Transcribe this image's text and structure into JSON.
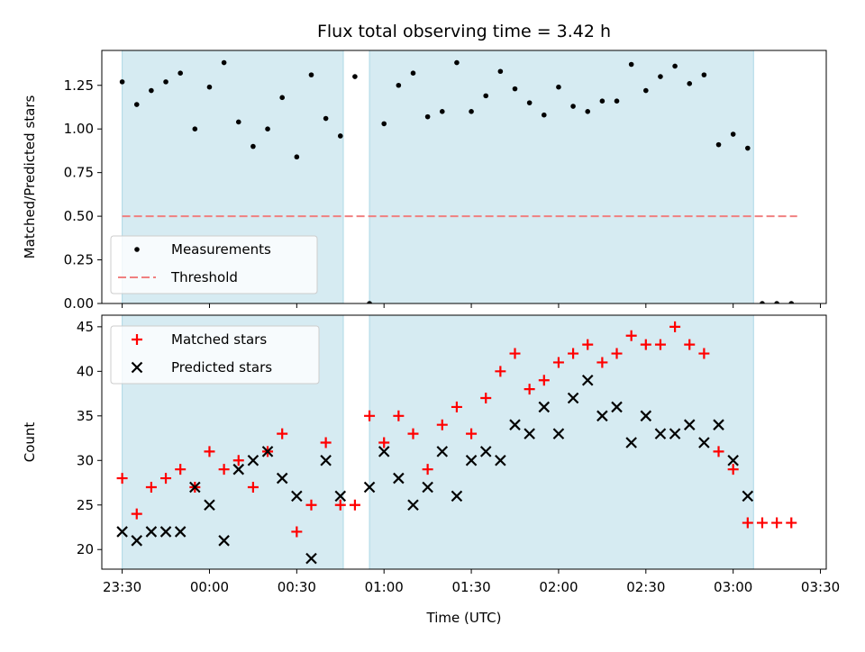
{
  "chart_data": [
    {
      "type": "scatter",
      "title": "Flux total observing time = 3.42 h",
      "xlabel": "",
      "ylabel": "Matched/Predicted stars",
      "xlim": [
        "23:23",
        "03:32"
      ],
      "ylim": [
        0,
        1.45
      ],
      "yticks": [
        "0.00",
        "0.25",
        "0.50",
        "0.75",
        "1.00",
        "1.25"
      ],
      "legend_position": "lower-left",
      "shaded_intervals": [
        [
          "23:30",
          "00:46"
        ],
        [
          "00:55",
          "03:07"
        ]
      ],
      "threshold": {
        "name": "Threshold",
        "y": 0.5,
        "x_start": "23:30",
        "x_end": "03:22",
        "color": "#f08080"
      },
      "series": [
        {
          "name": "Measurements",
          "marker": "dot",
          "color": "#000000",
          "points": [
            [
              "23:30",
              1.27
            ],
            [
              "23:35",
              1.14
            ],
            [
              "23:40",
              1.22
            ],
            [
              "23:45",
              1.27
            ],
            [
              "23:50",
              1.32
            ],
            [
              "23:55",
              1.0
            ],
            [
              "00:00",
              1.24
            ],
            [
              "00:05",
              1.38
            ],
            [
              "00:10",
              1.04
            ],
            [
              "00:15",
              0.9
            ],
            [
              "00:20",
              1.0
            ],
            [
              "00:25",
              1.18
            ],
            [
              "00:30",
              0.84
            ],
            [
              "00:35",
              1.31
            ],
            [
              "00:40",
              1.06
            ],
            [
              "00:45",
              0.96
            ],
            [
              "00:50",
              1.3
            ],
            [
              "00:55",
              0.0
            ],
            [
              "01:00",
              1.03
            ],
            [
              "01:05",
              1.25
            ],
            [
              "01:10",
              1.32
            ],
            [
              "01:15",
              1.07
            ],
            [
              "01:20",
              1.1
            ],
            [
              "01:25",
              1.38
            ],
            [
              "01:30",
              1.1
            ],
            [
              "01:35",
              1.19
            ],
            [
              "01:40",
              1.33
            ],
            [
              "01:45",
              1.23
            ],
            [
              "01:50",
              1.15
            ],
            [
              "01:55",
              1.08
            ],
            [
              "02:00",
              1.24
            ],
            [
              "02:05",
              1.13
            ],
            [
              "02:10",
              1.1
            ],
            [
              "02:15",
              1.16
            ],
            [
              "02:20",
              1.16
            ],
            [
              "02:25",
              1.37
            ],
            [
              "02:30",
              1.22
            ],
            [
              "02:35",
              1.3
            ],
            [
              "02:40",
              1.36
            ],
            [
              "02:45",
              1.26
            ],
            [
              "02:50",
              1.31
            ],
            [
              "02:55",
              0.91
            ],
            [
              "03:00",
              0.97
            ],
            [
              "03:05",
              0.89
            ],
            [
              "03:10",
              0.0
            ],
            [
              "03:15",
              0.0
            ],
            [
              "03:20",
              0.0
            ]
          ]
        }
      ]
    },
    {
      "type": "scatter",
      "title": "",
      "xlabel": "Time (UTC)",
      "ylabel": "Count",
      "xlim": [
        "23:23",
        "03:32"
      ],
      "ylim": [
        17.8,
        46.3
      ],
      "yticks": [
        "20",
        "25",
        "30",
        "35",
        "40",
        "45"
      ],
      "xticks": [
        "23:30",
        "00:00",
        "00:30",
        "01:00",
        "01:30",
        "02:00",
        "02:30",
        "03:00",
        "03:30"
      ],
      "legend_position": "top-left",
      "shaded_intervals": [
        [
          "23:30",
          "00:46"
        ],
        [
          "00:55",
          "03:07"
        ]
      ],
      "series": [
        {
          "name": "Matched stars",
          "marker": "plus",
          "color": "#ff0000",
          "points": [
            [
              "23:30",
              28
            ],
            [
              "23:35",
              24
            ],
            [
              "23:40",
              27
            ],
            [
              "23:45",
              28
            ],
            [
              "23:50",
              29
            ],
            [
              "23:55",
              27
            ],
            [
              "00:00",
              31
            ],
            [
              "00:05",
              29
            ],
            [
              "00:10",
              30
            ],
            [
              "00:15",
              27
            ],
            [
              "00:20",
              31
            ],
            [
              "00:25",
              33
            ],
            [
              "00:30",
              22
            ],
            [
              "00:35",
              25
            ],
            [
              "00:40",
              32
            ],
            [
              "00:45",
              25
            ],
            [
              "00:50",
              25
            ],
            [
              "00:55",
              35
            ],
            [
              "01:00",
              32
            ],
            [
              "01:05",
              35
            ],
            [
              "01:10",
              33
            ],
            [
              "01:15",
              29
            ],
            [
              "01:20",
              34
            ],
            [
              "01:25",
              36
            ],
            [
              "01:30",
              33
            ],
            [
              "01:35",
              37
            ],
            [
              "01:40",
              40
            ],
            [
              "01:45",
              42
            ],
            [
              "01:50",
              38
            ],
            [
              "01:55",
              39
            ],
            [
              "02:00",
              41
            ],
            [
              "02:05",
              42
            ],
            [
              "02:10",
              43
            ],
            [
              "02:15",
              41
            ],
            [
              "02:20",
              42
            ],
            [
              "02:25",
              44
            ],
            [
              "02:30",
              43
            ],
            [
              "02:35",
              43
            ],
            [
              "02:40",
              45
            ],
            [
              "02:45",
              43
            ],
            [
              "02:50",
              42
            ],
            [
              "02:55",
              31
            ],
            [
              "03:00",
              29
            ],
            [
              "03:05",
              23
            ],
            [
              "03:10",
              23
            ],
            [
              "03:15",
              23
            ],
            [
              "03:20",
              23
            ]
          ]
        },
        {
          "name": "Predicted stars",
          "marker": "x",
          "color": "#000000",
          "points": [
            [
              "23:30",
              22
            ],
            [
              "23:35",
              21
            ],
            [
              "23:40",
              22
            ],
            [
              "23:45",
              22
            ],
            [
              "23:50",
              22
            ],
            [
              "23:55",
              27
            ],
            [
              "00:00",
              25
            ],
            [
              "00:05",
              21
            ],
            [
              "00:10",
              29
            ],
            [
              "00:15",
              30
            ],
            [
              "00:20",
              31
            ],
            [
              "00:25",
              28
            ],
            [
              "00:30",
              26
            ],
            [
              "00:35",
              19
            ],
            [
              "00:40",
              30
            ],
            [
              "00:45",
              26
            ],
            [
              "00:55",
              27
            ],
            [
              "01:00",
              31
            ],
            [
              "01:05",
              28
            ],
            [
              "01:10",
              25
            ],
            [
              "01:15",
              27
            ],
            [
              "01:20",
              31
            ],
            [
              "01:25",
              26
            ],
            [
              "01:30",
              30
            ],
            [
              "01:35",
              31
            ],
            [
              "01:40",
              30
            ],
            [
              "01:45",
              34
            ],
            [
              "01:50",
              33
            ],
            [
              "01:55",
              36
            ],
            [
              "02:00",
              33
            ],
            [
              "02:05",
              37
            ],
            [
              "02:10",
              39
            ],
            [
              "02:15",
              35
            ],
            [
              "02:20",
              36
            ],
            [
              "02:25",
              32
            ],
            [
              "02:30",
              35
            ],
            [
              "02:35",
              33
            ],
            [
              "02:40",
              33
            ],
            [
              "02:45",
              34
            ],
            [
              "02:50",
              32
            ],
            [
              "02:55",
              34
            ],
            [
              "03:00",
              30
            ],
            [
              "03:05",
              26
            ]
          ]
        }
      ]
    }
  ],
  "colors": {
    "shade": "#add8e6",
    "axis": "#000000",
    "legend_border": "#cccccc"
  }
}
